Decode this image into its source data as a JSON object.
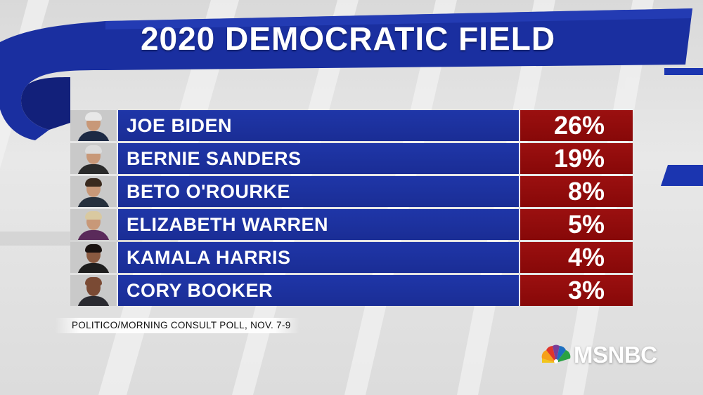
{
  "chart_data": {
    "type": "table",
    "title": "2020 DEMOCRATIC FIELD",
    "categories": [
      "JOE BIDEN",
      "BERNIE SANDERS",
      "BETO O'ROURKE",
      "ELIZABETH WARREN",
      "KAMALA HARRIS",
      "CORY BOOKER"
    ],
    "values": [
      26,
      19,
      8,
      5,
      4,
      3
    ],
    "value_labels": [
      "26%",
      "19%",
      "8%",
      "5%",
      "4%",
      "3%"
    ],
    "source": "POLITICO/MORNING CONSULT POLL, NOV. 7-9"
  },
  "logo": {
    "text": "MSNBC",
    "icon": "nbc-peacock-icon"
  },
  "colors": {
    "banner": "#1a2fa0",
    "name_cell": "#1f36a8",
    "pct_cell": "#9b1010"
  }
}
